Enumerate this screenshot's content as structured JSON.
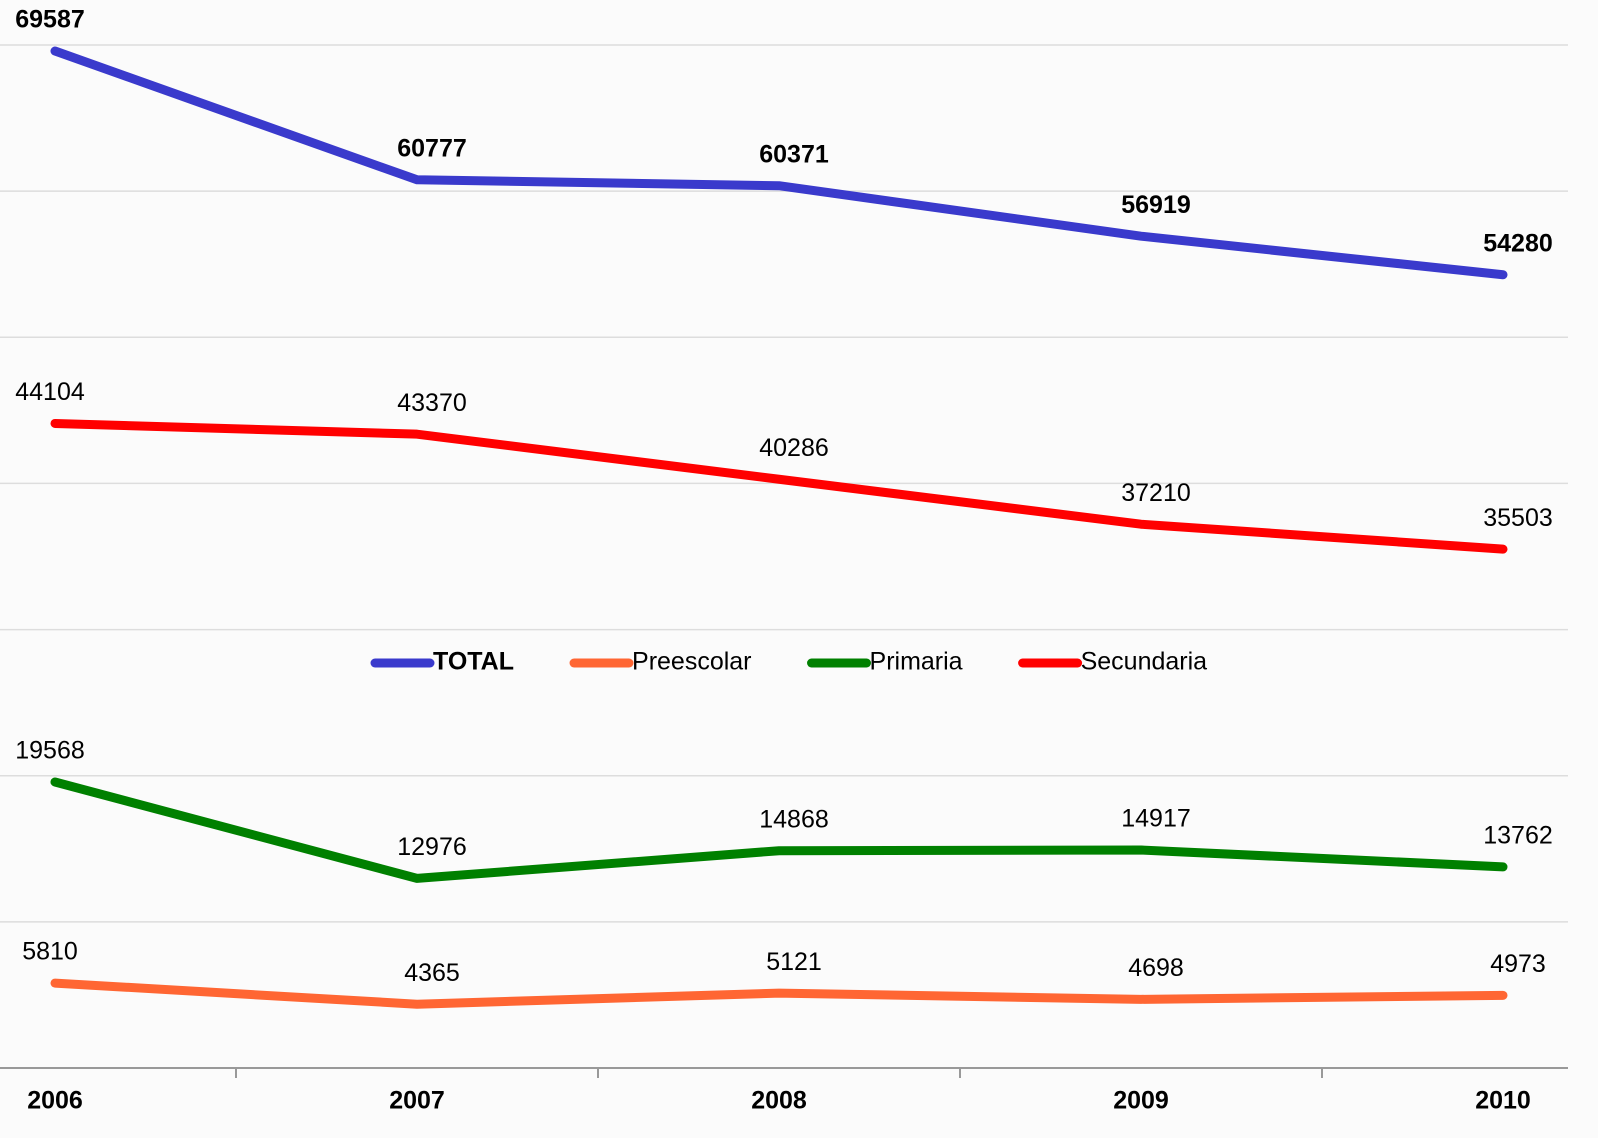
{
  "chart_data": {
    "type": "line",
    "categories": [
      "2006",
      "2007",
      "2008",
      "2009",
      "2010"
    ],
    "series": [
      {
        "name": "TOTAL",
        "color": "#3a3acc",
        "values": [
          69587,
          60777,
          60371,
          56919,
          54280
        ]
      },
      {
        "name": "Preescolar",
        "color": "#ff6633",
        "values": [
          5810,
          4365,
          5121,
          4698,
          4973
        ]
      },
      {
        "name": "Primaria",
        "color": "#008000",
        "values": [
          19568,
          12976,
          14868,
          14917,
          13762
        ]
      },
      {
        "name": "Secundaria",
        "color": "#ff0000",
        "values": [
          44104,
          43370,
          40286,
          37210,
          35503
        ]
      }
    ],
    "ylim": [
      0,
      70000
    ],
    "yticks": [
      0,
      10000,
      20000,
      30000,
      40000,
      50000,
      60000,
      70000
    ],
    "grid": true,
    "legend": "center"
  }
}
